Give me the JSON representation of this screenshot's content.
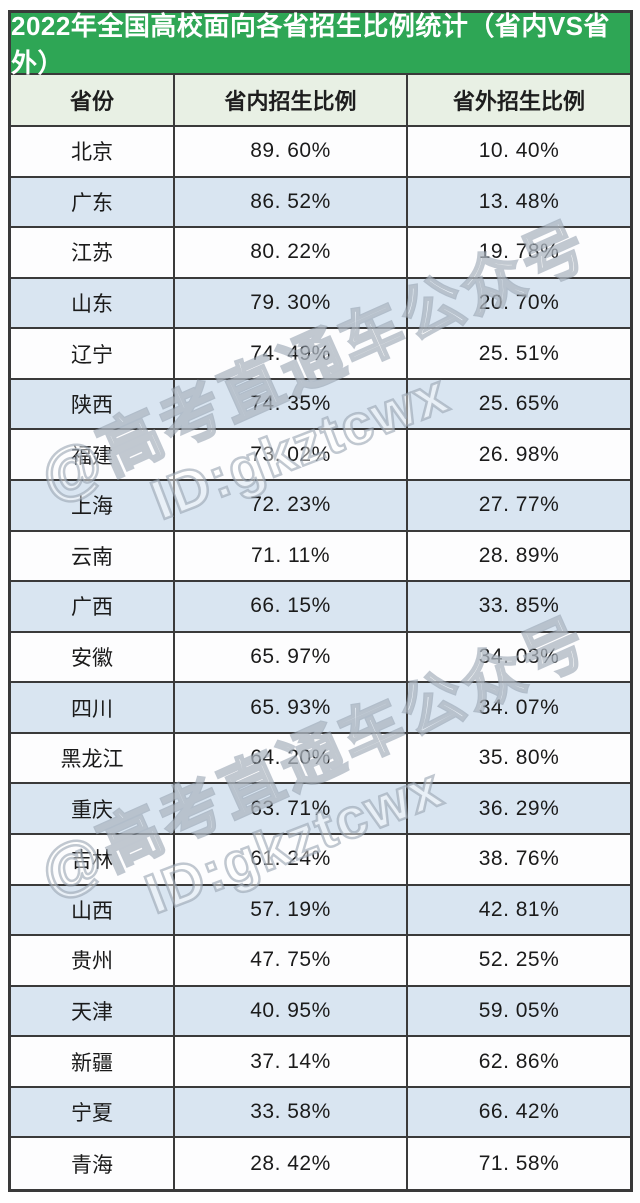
{
  "title": "2022年全国高校面向各省招生比例统计（省内VS省外）",
  "table": {
    "headers": [
      "省份",
      "省内招生比例",
      "省外招生比例"
    ],
    "rows": [
      [
        "北京",
        "89. 60%",
        "10. 40%"
      ],
      [
        "广东",
        "86. 52%",
        "13. 48%"
      ],
      [
        "江苏",
        "80. 22%",
        "19. 78%"
      ],
      [
        "山东",
        "79. 30%",
        "20. 70%"
      ],
      [
        "辽宁",
        "74. 49%",
        "25. 51%"
      ],
      [
        "陕西",
        "74. 35%",
        "25. 65%"
      ],
      [
        "福建",
        "73. 02%",
        "26. 98%"
      ],
      [
        "上海",
        "72. 23%",
        "27. 77%"
      ],
      [
        "云南",
        "71. 11%",
        "28. 89%"
      ],
      [
        "广西",
        "66. 15%",
        "33. 85%"
      ],
      [
        "安徽",
        "65. 97%",
        "34. 03%"
      ],
      [
        "四川",
        "65. 93%",
        "34. 07%"
      ],
      [
        "黑龙江",
        "64. 20%",
        "35. 80%"
      ],
      [
        "重庆",
        "63. 71%",
        "36. 29%"
      ],
      [
        "吉林",
        "61. 24%",
        "38. 76%"
      ],
      [
        "山西",
        "57. 19%",
        "42. 81%"
      ],
      [
        "贵州",
        "47. 75%",
        "52. 25%"
      ],
      [
        "天津",
        "40. 95%",
        "59. 05%"
      ],
      [
        "新疆",
        "37. 14%",
        "62. 86%"
      ],
      [
        "宁夏",
        "33. 58%",
        "66. 42%"
      ],
      [
        "青海",
        "28. 42%",
        "71. 58%"
      ]
    ]
  },
  "watermark": {
    "handle": "@高考直通车公众号",
    "id": "ID:gkztcwx"
  },
  "colors": {
    "title_bg": "#2ea655",
    "title_text": "#ffffff",
    "header_bg": "#e8f0e4",
    "row_alt_bg": "#d9e5f1",
    "grid_line": "#3a3a3a",
    "body_text": "#1b1b1b"
  },
  "chart_data": {
    "type": "table",
    "title": "2022年全国高校面向各省招生比例统计（省内VS省外）",
    "columns": [
      "省份",
      "省内招生比例",
      "省外招生比例"
    ],
    "categories": [
      "北京",
      "广东",
      "江苏",
      "山东",
      "辽宁",
      "陕西",
      "福建",
      "上海",
      "云南",
      "广西",
      "安徽",
      "四川",
      "黑龙江",
      "重庆",
      "吉林",
      "山西",
      "贵州",
      "天津",
      "新疆",
      "宁夏",
      "青海"
    ],
    "series": [
      {
        "name": "省内招生比例",
        "unit": "%",
        "values": [
          89.6,
          86.52,
          80.22,
          79.3,
          74.49,
          74.35,
          73.02,
          72.23,
          71.11,
          66.15,
          65.97,
          65.93,
          64.2,
          63.71,
          61.24,
          57.19,
          47.75,
          40.95,
          37.14,
          33.58,
          28.42
        ]
      },
      {
        "name": "省外招生比例",
        "unit": "%",
        "values": [
          10.4,
          13.48,
          19.78,
          20.7,
          25.51,
          25.65,
          26.98,
          27.77,
          28.89,
          33.85,
          34.03,
          34.07,
          35.8,
          36.29,
          38.76,
          42.81,
          52.25,
          59.05,
          62.86,
          66.42,
          71.58
        ]
      }
    ],
    "layout": "alternating row stripes (white / light blue), green title banner, pale green header row, dark grid lines"
  }
}
